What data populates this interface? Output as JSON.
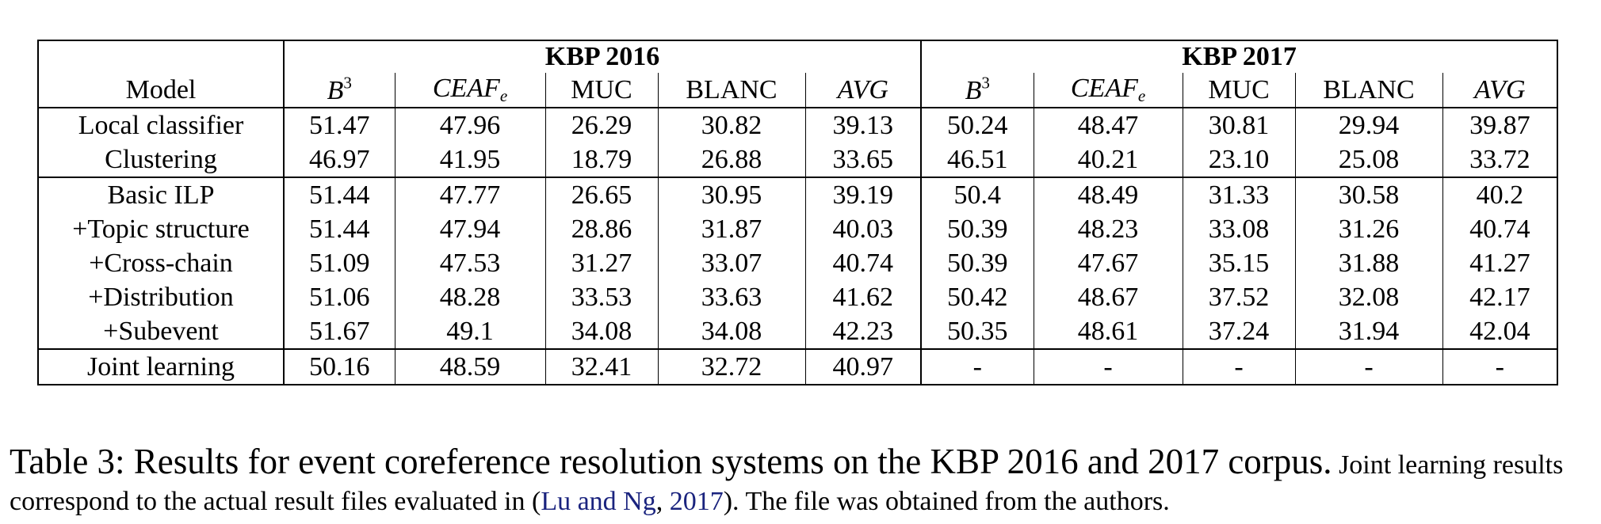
{
  "table": {
    "model_header": "Model",
    "groups": [
      "KBP 2016",
      "KBP 2017"
    ],
    "metrics": [
      {
        "base": "B",
        "sup": "3",
        "sub": "",
        "math": true
      },
      {
        "base": "CEAF",
        "sup": "",
        "sub": "e",
        "math": true
      },
      {
        "base": "MUC",
        "sup": "",
        "sub": "",
        "math": false
      },
      {
        "base": "BLANC",
        "sup": "",
        "sub": "",
        "math": false
      },
      {
        "base": "AVG",
        "sup": "",
        "sub": "",
        "math": true
      }
    ],
    "sections": [
      [
        {
          "model": "Local classifier",
          "values": [
            "51.47",
            "47.96",
            "26.29",
            "30.82",
            "39.13",
            "50.24",
            "48.47",
            "30.81",
            "29.94",
            "39.87"
          ]
        },
        {
          "model": "Clustering",
          "values": [
            "46.97",
            "41.95",
            "18.79",
            "26.88",
            "33.65",
            "46.51",
            "40.21",
            "23.10",
            "25.08",
            "33.72"
          ]
        }
      ],
      [
        {
          "model": "Basic ILP",
          "values": [
            "51.44",
            "47.77",
            "26.65",
            "30.95",
            "39.19",
            "50.4",
            "48.49",
            "31.33",
            "30.58",
            "40.2"
          ]
        },
        {
          "model": "+Topic structure",
          "values": [
            "51.44",
            "47.94",
            "28.86",
            "31.87",
            "40.03",
            "50.39",
            "48.23",
            "33.08",
            "31.26",
            "40.74"
          ]
        },
        {
          "model": "+Cross-chain",
          "values": [
            "51.09",
            "47.53",
            "31.27",
            "33.07",
            "40.74",
            "50.39",
            "47.67",
            "35.15",
            "31.88",
            "41.27"
          ]
        },
        {
          "model": "+Distribution",
          "values": [
            "51.06",
            "48.28",
            "33.53",
            "33.63",
            "41.62",
            "50.42",
            "48.67",
            "37.52",
            "32.08",
            "42.17"
          ]
        },
        {
          "model": "+Subevent",
          "values": [
            "51.67",
            "49.1",
            "34.08",
            "34.08",
            "42.23",
            "50.35",
            "48.61",
            "37.24",
            "31.94",
            "42.04"
          ]
        }
      ],
      [
        {
          "model": "Joint learning",
          "values": [
            "50.16",
            "48.59",
            "32.41",
            "32.72",
            "40.97",
            "-",
            "-",
            "-",
            "-",
            "-"
          ]
        }
      ]
    ]
  },
  "caption": {
    "main": "Table 3: Results for event coreference resolution systems on the KBP 2016 and 2017 corpus.",
    "note_before": "Joint learning results correspond to the actual result files evaluated in (",
    "cite_authors": "Lu and Ng",
    "cite_sep": ", ",
    "cite_year": "2017",
    "note_after": "). The file was obtained from the authors."
  }
}
